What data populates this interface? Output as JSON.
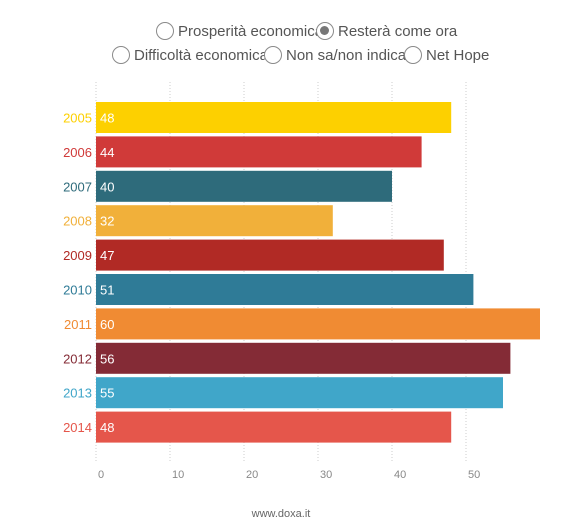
{
  "legend": {
    "items": [
      {
        "label": "Prosperità economica",
        "selected": false
      },
      {
        "label": "Resterà come ora",
        "selected": true
      },
      {
        "label": "Difficoltà economica",
        "selected": false
      },
      {
        "label": "Non sa/non indica",
        "selected": false
      },
      {
        "label": "Net Hope",
        "selected": false
      }
    ]
  },
  "footer": {
    "text": "www.doxa.it"
  },
  "chart_data": {
    "type": "bar",
    "orientation": "horizontal",
    "series_selected": "Resterà come ora",
    "categories": [
      "2005",
      "2006",
      "2007",
      "2008",
      "2009",
      "2010",
      "2011",
      "2012",
      "2013",
      "2014"
    ],
    "values": [
      48,
      44,
      40,
      32,
      47,
      51,
      60,
      56,
      55,
      48
    ],
    "colors": [
      "#fdd000",
      "#d03a39",
      "#2e6b7b",
      "#f1b03a",
      "#b12a25",
      "#2f7b97",
      "#f08b33",
      "#842b36",
      "#40a6c9",
      "#e5564b"
    ],
    "xticks": [
      0,
      10,
      20,
      30,
      40,
      50
    ],
    "xlim": [
      0,
      60
    ],
    "grid": true
  }
}
